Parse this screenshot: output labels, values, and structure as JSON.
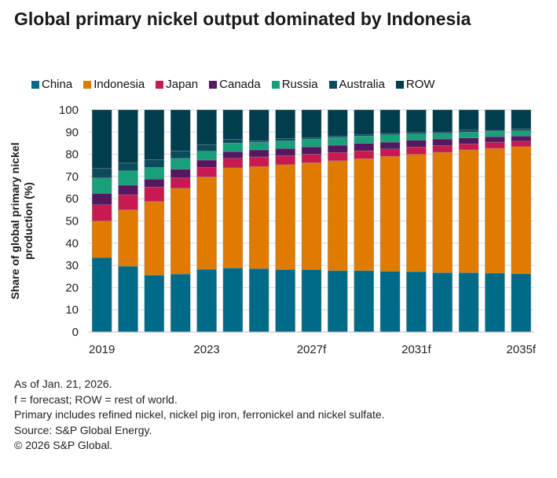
{
  "chart_data": {
    "type": "bar",
    "stacked": true,
    "title": "Global primary nickel output dominated by Indonesia",
    "ylabel": "Share of global primary nickel production (%)",
    "xlabel": "",
    "ylim": [
      0,
      100
    ],
    "yticks": [
      0,
      10,
      20,
      30,
      40,
      50,
      60,
      70,
      80,
      90,
      100
    ],
    "grid": true,
    "legend_position": "top",
    "categories": [
      "2019",
      "2020",
      "2021",
      "2022",
      "2023",
      "2024",
      "2025",
      "2026f",
      "2027f",
      "2028f",
      "2029f",
      "2030f",
      "2031f",
      "2032f",
      "2033f",
      "2034f",
      "2035f"
    ],
    "xtick_labels": [
      "2019",
      "",
      "",
      "",
      "2023",
      "",
      "",
      "",
      "2027f",
      "",
      "",
      "",
      "2031f",
      "",
      "",
      "",
      "2035f"
    ],
    "series": [
      {
        "name": "China",
        "color": "#006b88",
        "values": [
          33.5,
          29.6,
          25.6,
          26.1,
          28.2,
          28.8,
          28.5,
          28.1,
          28.1,
          27.6,
          27.6,
          27.3,
          27.1,
          26.7,
          26.7,
          26.5,
          26.2
        ]
      },
      {
        "name": "Indonesia",
        "color": "#e07b00",
        "values": [
          16.5,
          25.4,
          33.2,
          38.6,
          41.6,
          45.1,
          46.0,
          47.2,
          48.1,
          49.5,
          50.4,
          51.8,
          52.9,
          54.2,
          55.3,
          56.2,
          57.3
        ]
      },
      {
        "name": "Japan",
        "color": "#c81a50",
        "values": [
          7.3,
          6.8,
          6.5,
          4.7,
          4.3,
          4.3,
          4.3,
          4.1,
          3.8,
          3.7,
          3.6,
          3.3,
          3.3,
          3.1,
          2.7,
          2.8,
          2.4
        ]
      },
      {
        "name": "Canada",
        "color": "#561660",
        "values": [
          5.1,
          4.3,
          3.5,
          3.9,
          3.3,
          3.0,
          3.2,
          3.2,
          3.3,
          3.3,
          3.3,
          3.1,
          3.1,
          2.9,
          2.7,
          2.4,
          2.3
        ]
      },
      {
        "name": "Russia",
        "color": "#17a07a",
        "values": [
          7.0,
          6.5,
          5.3,
          4.9,
          4.0,
          3.9,
          3.5,
          3.5,
          3.6,
          3.5,
          3.3,
          3.3,
          2.8,
          2.5,
          2.6,
          2.5,
          2.4
        ]
      },
      {
        "name": "Australia",
        "color": "#0b4b5c",
        "values": [
          4.4,
          3.4,
          3.5,
          3.3,
          3.0,
          1.7,
          0.5,
          1.0,
          0.5,
          0.6,
          0.6,
          0.6,
          0.6,
          0.5,
          0.9,
          0.4,
          0.9
        ]
      },
      {
        "name": "ROW",
        "color": "#003e4e",
        "values": [
          26.2,
          24.0,
          22.4,
          18.5,
          15.6,
          13.2,
          14.0,
          12.9,
          12.6,
          11.8,
          11.2,
          10.6,
          10.2,
          10.1,
          9.1,
          9.2,
          8.5
        ]
      }
    ]
  },
  "notes": [
    "As of Jan. 21, 2026.",
    "f = forecast; ROW = rest of world.",
    "Primary includes refined nickel, nickel pig iron, ferronickel and nickel sulfate.",
    "Source: S&P Global Energy.",
    "© 2026 S&P Global."
  ]
}
